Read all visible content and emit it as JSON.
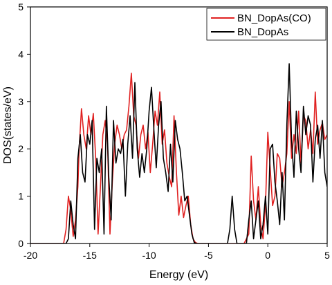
{
  "chart_data": {
    "type": "line",
    "xlabel": "Energy (eV)",
    "ylabel": "DOS(states/eV)",
    "xlim": [
      -20,
      5
    ],
    "ylim": [
      0,
      5
    ],
    "xticks": [
      -20,
      -15,
      -10,
      -5,
      0,
      5
    ],
    "yticks": [
      0,
      1,
      2,
      3,
      4,
      5
    ],
    "grid": false,
    "legend_position": "top-right",
    "series": [
      {
        "name": "BN_DopAs(CO)",
        "color": "#e02020",
        "x": [
          -20,
          -17.2,
          -17.0,
          -16.8,
          -16.6,
          -16.4,
          -16.2,
          -16.0,
          -15.9,
          -15.7,
          -15.5,
          -15.3,
          -15.1,
          -14.9,
          -14.7,
          -14.5,
          -14.3,
          -14.1,
          -13.9,
          -13.7,
          -13.5,
          -13.3,
          -13.1,
          -12.9,
          -12.7,
          -12.5,
          -12.3,
          -12.1,
          -11.9,
          -11.7,
          -11.5,
          -11.3,
          -11.1,
          -10.9,
          -10.7,
          -10.5,
          -10.3,
          -10.1,
          -9.9,
          -9.7,
          -9.5,
          -9.3,
          -9.1,
          -8.9,
          -8.7,
          -8.5,
          -8.3,
          -8.1,
          -7.9,
          -7.7,
          -7.5,
          -7.3,
          -7.1,
          -6.9,
          -6.7,
          -6.5,
          -6.3,
          -6.1,
          -5.9,
          -5.7,
          -5.5,
          -3.0,
          -2.0,
          -1.6,
          -1.4,
          -1.2,
          -1.0,
          -0.8,
          -0.6,
          -0.4,
          -0.2,
          0.0,
          0.2,
          0.4,
          0.6,
          0.8,
          1.0,
          1.2,
          1.4,
          1.6,
          1.8,
          2.0,
          2.2,
          2.4,
          2.6,
          2.8,
          3.0,
          3.2,
          3.4,
          3.6,
          3.8,
          4.0,
          4.2,
          4.4,
          4.6,
          4.8,
          5.0
        ],
        "y": [
          0,
          0,
          0.3,
          1.0,
          0.7,
          0.15,
          0.5,
          1.2,
          2.0,
          2.85,
          2.3,
          2.0,
          2.7,
          2.3,
          2.75,
          1.8,
          0.2,
          1.2,
          2.3,
          2.6,
          2.1,
          0.2,
          1.3,
          2.1,
          2.5,
          2.3,
          2.0,
          2.3,
          2.4,
          2.9,
          3.6,
          2.7,
          2.5,
          1.8,
          2.3,
          2.5,
          2.0,
          2.35,
          1.5,
          2.1,
          2.8,
          2.5,
          3.2,
          2.1,
          2.4,
          1.7,
          1.4,
          1.2,
          2.7,
          1.5,
          0.6,
          1.0,
          0.55,
          0.8,
          1.0,
          0.4,
          0.1,
          0.02,
          0,
          0,
          0,
          0,
          0,
          0.2,
          1.85,
          0.9,
          0.5,
          1.2,
          0.4,
          0.1,
          0.8,
          2.35,
          1.6,
          0.8,
          1.0,
          1.9,
          1.8,
          1.2,
          1.5,
          1.9,
          3.0,
          1.8,
          2.3,
          1.9,
          2.8,
          1.7,
          2.7,
          2.6,
          2.0,
          2.4,
          1.9,
          3.2,
          2.1,
          2.4,
          2.55,
          2.2,
          2.3
        ]
      },
      {
        "name": "BN_DopAs",
        "color": "#000000",
        "x": [
          -20,
          -17.0,
          -16.8,
          -16.6,
          -16.4,
          -16.2,
          -16.0,
          -15.8,
          -15.6,
          -15.4,
          -15.2,
          -15.0,
          -14.8,
          -14.6,
          -14.4,
          -14.2,
          -14.0,
          -13.8,
          -13.6,
          -13.4,
          -13.2,
          -13.0,
          -12.8,
          -12.6,
          -12.4,
          -12.2,
          -12.0,
          -11.8,
          -11.6,
          -11.4,
          -11.2,
          -11.0,
          -10.8,
          -10.6,
          -10.4,
          -10.2,
          -10.0,
          -9.8,
          -9.6,
          -9.4,
          -9.2,
          -9.0,
          -8.8,
          -8.6,
          -8.4,
          -8.2,
          -8.0,
          -7.8,
          -7.6,
          -7.4,
          -7.2,
          -7.0,
          -6.8,
          -6.6,
          -6.4,
          -6.2,
          -6.0,
          -5.8,
          -3.4,
          -3.2,
          -3.0,
          -2.8,
          -2.6,
          -1.8,
          -1.6,
          -1.4,
          -1.2,
          -1.0,
          -0.8,
          -0.6,
          -0.4,
          -0.2,
          0.0,
          0.2,
          0.4,
          0.6,
          0.8,
          1.0,
          1.2,
          1.4,
          1.6,
          1.8,
          2.0,
          2.2,
          2.4,
          2.6,
          2.8,
          3.0,
          3.2,
          3.4,
          3.6,
          3.8,
          4.0,
          4.2,
          4.4,
          4.6,
          4.8,
          5.0
        ],
        "y": [
          0,
          0,
          0.1,
          0.9,
          0.4,
          0.1,
          1.8,
          2.3,
          1.5,
          1.3,
          2.3,
          2.1,
          2.6,
          0.3,
          1.8,
          1.5,
          2.0,
          0.2,
          2.9,
          1.4,
          0.5,
          2.6,
          1.7,
          2.0,
          1.9,
          2.2,
          1.0,
          2.1,
          2.7,
          1.8,
          3.4,
          2.0,
          1.4,
          1.9,
          1.5,
          2.0,
          2.8,
          3.3,
          2.4,
          1.6,
          2.5,
          3.0,
          1.8,
          1.5,
          1.1,
          2.1,
          1.3,
          2.6,
          2.2,
          2.0,
          1.5,
          0.9,
          1.0,
          0.6,
          0.2,
          0.02,
          0,
          0,
          0,
          0.3,
          1.0,
          0.3,
          0,
          0,
          0.5,
          0.9,
          0.1,
          0.5,
          0.9,
          0.1,
          0.4,
          1.0,
          0.2,
          2.0,
          2.1,
          1.3,
          0.9,
          0.4,
          1.5,
          0.5,
          2.5,
          3.8,
          2.2,
          1.4,
          2.8,
          2.0,
          1.5,
          2.9,
          2.3,
          2.7,
          2.5,
          1.3,
          2.2,
          2.5,
          1.8,
          2.6,
          1.5,
          1.2
        ]
      }
    ]
  }
}
